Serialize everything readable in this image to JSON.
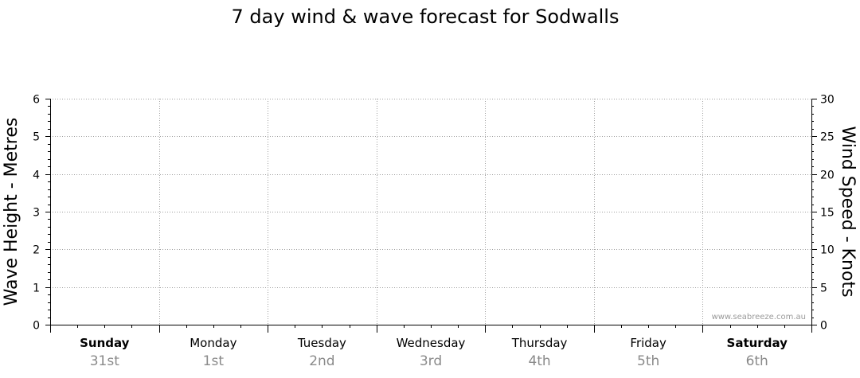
{
  "chart_data": {
    "type": "line",
    "title": "7 day wind & wave forecast for Sodwalls",
    "y_left": {
      "label": "Wave Height - Metres",
      "range": [
        0,
        6
      ],
      "ticks": [
        0,
        1,
        2,
        3,
        4,
        5,
        6
      ]
    },
    "y_right": {
      "label": "Wind Speed - Knots",
      "range": [
        0,
        30
      ],
      "ticks": [
        0,
        5,
        10,
        15,
        20,
        25,
        30
      ]
    },
    "days": [
      {
        "name": "Sunday",
        "date": "31st",
        "bold": true
      },
      {
        "name": "Monday",
        "date": "1st",
        "bold": false
      },
      {
        "name": "Tuesday",
        "date": "2nd",
        "bold": false
      },
      {
        "name": "Wednesday",
        "date": "3rd",
        "bold": false
      },
      {
        "name": "Thursday",
        "date": "4th",
        "bold": false
      },
      {
        "name": "Friday",
        "date": "5th",
        "bold": false
      },
      {
        "name": "Saturday",
        "date": "6th",
        "bold": true
      }
    ],
    "series": [],
    "grid": true
  },
  "watermark": "www.seabreeze.com.au"
}
